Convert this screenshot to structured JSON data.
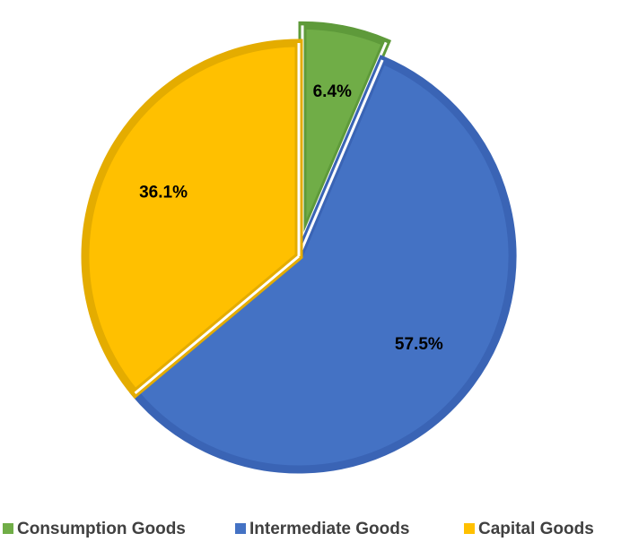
{
  "chart_data": {
    "type": "pie",
    "title": "",
    "slices": [
      {
        "name": "Consumption Goods",
        "value": 6.4,
        "label": "6.4%",
        "color": "#70AD47",
        "stroke": "#5E9A3A",
        "exploded": true
      },
      {
        "name": "Intermediate Goods",
        "value": 57.5,
        "label": "57.5%",
        "color": "#4472C4",
        "stroke": "#3A64B5",
        "exploded": false
      },
      {
        "name": "Capital Goods",
        "value": 36.1,
        "label": "36.1%",
        "color": "#FFC000",
        "stroke": "#E4AC00",
        "exploded": false
      }
    ],
    "start_angle_deg": 0,
    "direction": "clockwise",
    "legend": {
      "position": "bottom",
      "entries": [
        "Consumption Goods",
        "Intermediate Goods",
        "Capital Goods"
      ]
    }
  }
}
